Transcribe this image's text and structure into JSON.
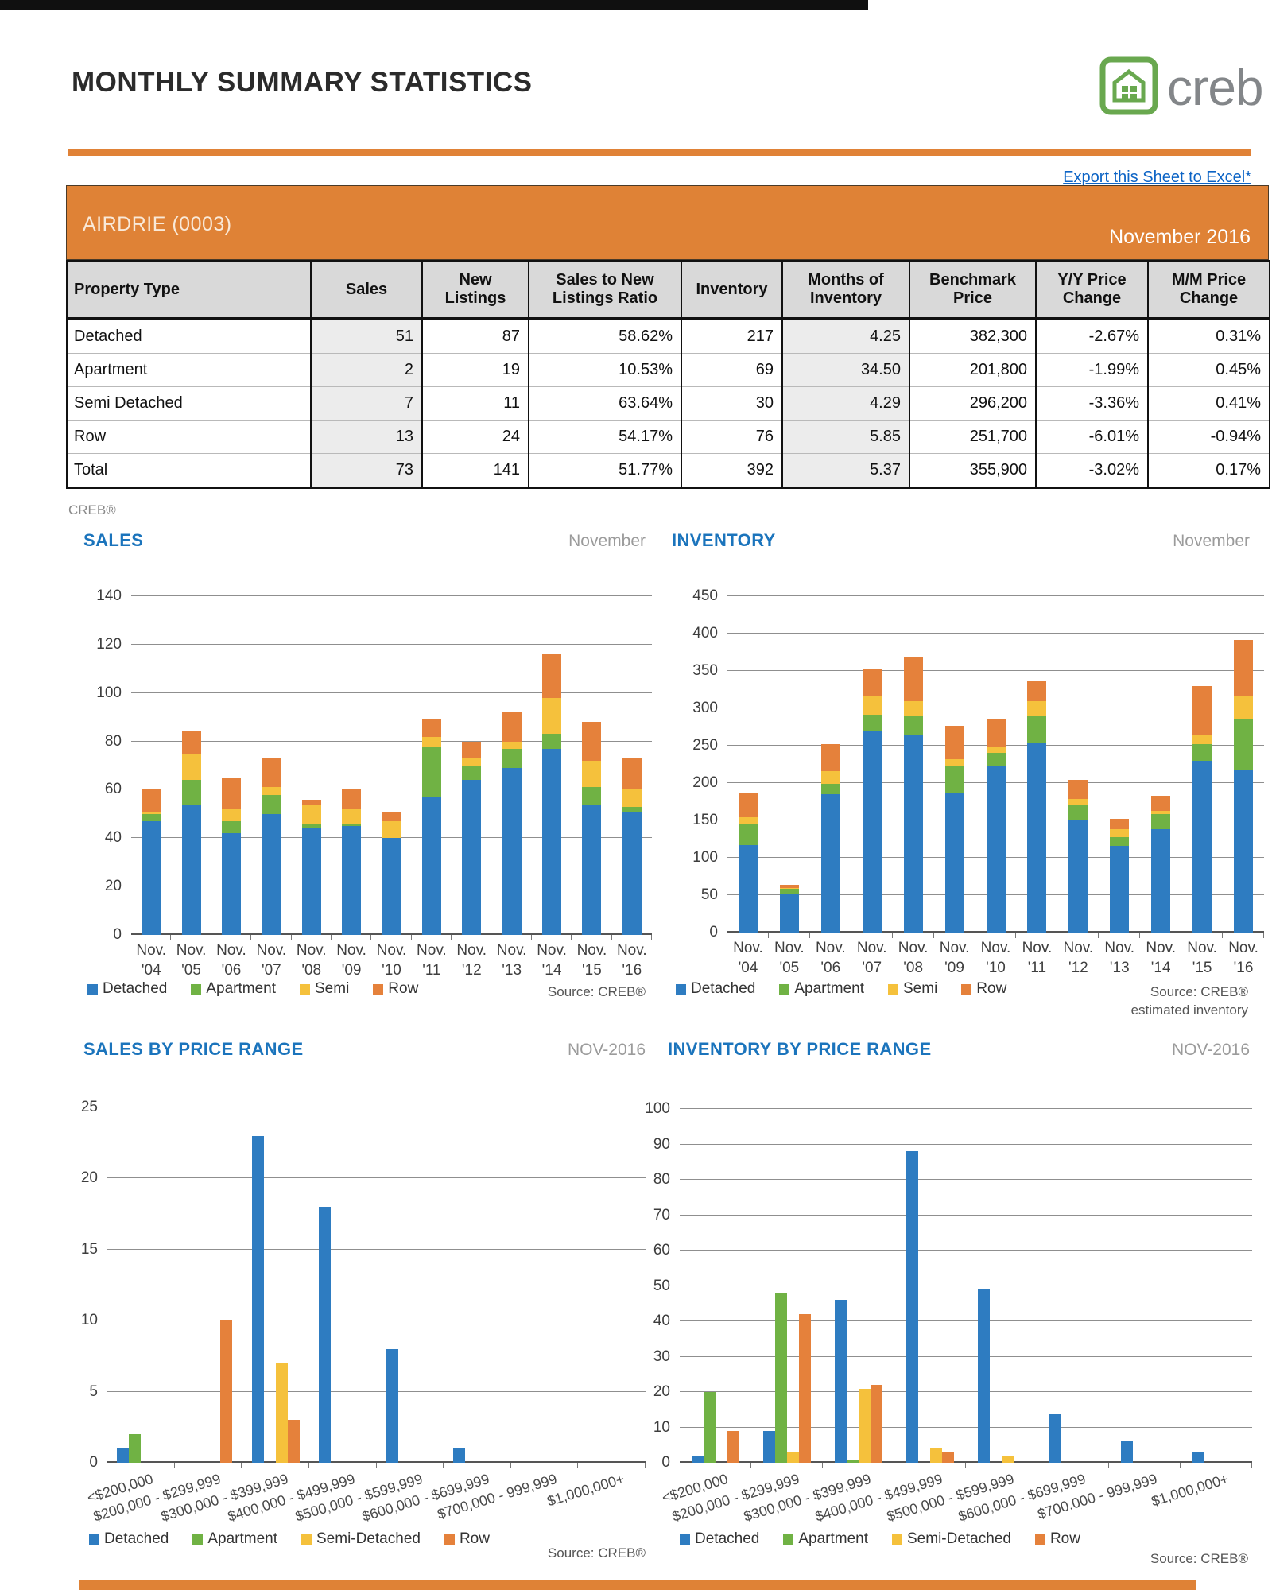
{
  "page": {
    "title": "MONTHLY SUMMARY STATISTICS",
    "export_link": "Export this Sheet to Excel*",
    "logo_text": "creb",
    "table_source": "CREB®"
  },
  "banner": {
    "region": "AIRDRIE (0003)",
    "period": "November 2016"
  },
  "summary_table": {
    "columns": [
      "Property Type",
      "Sales",
      "New Listings",
      "Sales to New Listings Ratio",
      "Inventory",
      "Months of Inventory",
      "Benchmark Price",
      "Y/Y Price Change",
      "M/M Price Change"
    ],
    "rows": [
      [
        "Detached",
        "51",
        "87",
        "58.62%",
        "217",
        "4.25",
        "382,300",
        "-2.67%",
        "0.31%"
      ],
      [
        "Apartment",
        "2",
        "19",
        "10.53%",
        "69",
        "34.50",
        "201,800",
        "-1.99%",
        "0.45%"
      ],
      [
        "Semi Detached",
        "7",
        "11",
        "63.64%",
        "30",
        "4.29",
        "296,200",
        "-3.36%",
        "0.41%"
      ],
      [
        "Row",
        "13",
        "24",
        "54.17%",
        "76",
        "5.85",
        "251,700",
        "-6.01%",
        "-0.94%"
      ],
      [
        "Total",
        "73",
        "141",
        "51.77%",
        "392",
        "5.37",
        "355,900",
        "-3.02%",
        "0.17%"
      ]
    ],
    "shaded_columns": [
      1,
      5
    ]
  },
  "colors": {
    "accent_orange": "#DF8236",
    "title_blue": "#1B74BC",
    "link_blue": "#0B63C5",
    "period_gray": "#9B9B9B",
    "logo_green": "#69A84F",
    "series": [
      "#2E7CC1",
      "#70B244",
      "#F5C13C",
      "#E5813B"
    ]
  },
  "chart_data": [
    {
      "id": "sales-by-year",
      "type": "bar-stacked",
      "title": "SALES",
      "period": "November",
      "x_prefix": "Nov.",
      "categories": [
        "'04",
        "'05",
        "'06",
        "'07",
        "'08",
        "'09",
        "'10",
        "'11",
        "'12",
        "'13",
        "'14",
        "'15",
        "'16"
      ],
      "series": [
        {
          "name": "Detached",
          "values": [
            47,
            54,
            42,
            50,
            44,
            45,
            40,
            57,
            64,
            69,
            77,
            54,
            51
          ]
        },
        {
          "name": "Apartment",
          "values": [
            3,
            10,
            5,
            8,
            2,
            1,
            0,
            21,
            6,
            8,
            6,
            7,
            2
          ]
        },
        {
          "name": "Semi",
          "values": [
            1,
            11,
            5,
            3,
            8,
            6,
            7,
            4,
            3,
            3,
            15,
            11,
            7
          ]
        },
        {
          "name": "Row",
          "values": [
            9,
            9,
            13,
            12,
            2,
            8,
            4,
            7,
            7,
            12,
            18,
            16,
            13
          ]
        }
      ],
      "ylim": [
        0,
        140
      ],
      "ystep": 20,
      "grid": true,
      "legend_position": "bottom",
      "source_lines": [
        "Source: CREB®"
      ]
    },
    {
      "id": "inventory-by-year",
      "type": "bar-stacked",
      "title": "INVENTORY",
      "period": "November",
      "x_prefix": "Nov.",
      "categories": [
        "'04",
        "'05",
        "'06",
        "'07",
        "'08",
        "'09",
        "'10",
        "'11",
        "'12",
        "'13",
        "'14",
        "'15",
        "'16"
      ],
      "series": [
        {
          "name": "Detached",
          "values": [
            117,
            52,
            185,
            269,
            265,
            187,
            222,
            254,
            151,
            116,
            138,
            230,
            217
          ]
        },
        {
          "name": "Apartment",
          "values": [
            28,
            7,
            14,
            23,
            24,
            35,
            18,
            35,
            20,
            12,
            20,
            22,
            69
          ]
        },
        {
          "name": "Semi",
          "values": [
            9,
            1,
            17,
            24,
            21,
            10,
            9,
            21,
            8,
            10,
            5,
            13,
            30
          ]
        },
        {
          "name": "Row",
          "values": [
            32,
            4,
            36,
            37,
            58,
            45,
            37,
            26,
            25,
            14,
            20,
            65,
            76
          ]
        }
      ],
      "ylim": [
        0,
        450
      ],
      "ystep": 50,
      "grid": true,
      "legend_position": "bottom",
      "source_lines": [
        "Source: CREB®",
        "estimated inventory"
      ]
    },
    {
      "id": "sales-by-price-range",
      "type": "bar-grouped",
      "title": "SALES BY PRICE RANGE",
      "period": "NOV-2016",
      "categories": [
        "<$200,000",
        "$200,000 - $299,999",
        "$300,000 - $399,999",
        "$400,000 - $499,999",
        "$500,000 - $599,999",
        "$600,000 - $699,999",
        "$700,000 - 999,999",
        "$1,000,000+"
      ],
      "series": [
        {
          "name": "Detached",
          "values": [
            1,
            0,
            23,
            18,
            8,
            1,
            0,
            0
          ]
        },
        {
          "name": "Apartment",
          "values": [
            2,
            0,
            0,
            0,
            0,
            0,
            0,
            0
          ]
        },
        {
          "name": "Semi-Detached",
          "values": [
            0,
            0,
            7,
            0,
            0,
            0,
            0,
            0
          ]
        },
        {
          "name": "Row",
          "values": [
            0,
            10,
            3,
            0,
            0,
            0,
            0,
            0
          ]
        }
      ],
      "ylim": [
        0,
        25
      ],
      "ystep": 5,
      "grid": true,
      "legend_position": "bottom",
      "source_lines": [
        "Source: CREB®"
      ]
    },
    {
      "id": "inventory-by-price-range",
      "type": "bar-grouped",
      "title": "INVENTORY BY PRICE RANGE",
      "period": "NOV-2016",
      "categories": [
        "<$200,000",
        "$200,000 - $299,999",
        "$300,000 - $399,999",
        "$400,000 - $499,999",
        "$500,000 - $599,999",
        "$600,000 - $699,999",
        "$700,000 - 999,999",
        "$1,000,000+"
      ],
      "series": [
        {
          "name": "Detached",
          "values": [
            2,
            9,
            46,
            88,
            49,
            14,
            6,
            3
          ]
        },
        {
          "name": "Apartment",
          "values": [
            20,
            48,
            1,
            0,
            0,
            0,
            0,
            0
          ]
        },
        {
          "name": "Semi-Detached",
          "values": [
            0,
            3,
            21,
            4,
            2,
            0,
            0,
            0
          ]
        },
        {
          "name": "Row",
          "values": [
            9,
            42,
            22,
            3,
            0,
            0,
            0,
            0
          ]
        }
      ],
      "ylim": [
        0,
        100
      ],
      "ystep": 10,
      "grid": true,
      "legend_position": "bottom",
      "source_lines": [
        "Source: CREB®"
      ]
    }
  ]
}
